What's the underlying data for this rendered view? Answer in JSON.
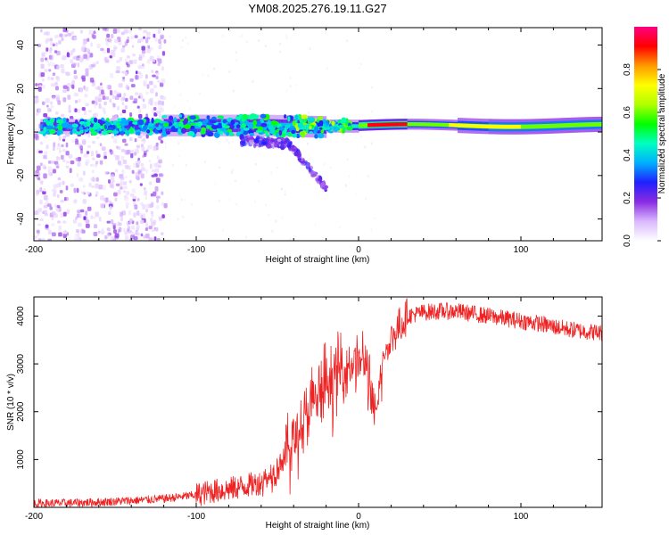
{
  "title": "YM08.2025.276.19.11.G27",
  "chart_data": [
    {
      "type": "heatmap",
      "xlabel": "Height of straight line (km)",
      "ylabel": "Frequency (Hz)",
      "xlim": [
        -200,
        150
      ],
      "ylim": [
        -50,
        48
      ],
      "xticks": [
        -200,
        -100,
        0,
        100
      ],
      "yticks": [
        -40,
        -20,
        0,
        20,
        40
      ],
      "colorbar": {
        "label": "Normalized spectral amplitude",
        "range": [
          0,
          1
        ],
        "ticks": [
          0.0,
          0.2,
          0.4,
          0.6,
          0.8
        ],
        "colors": [
          "#ffffff",
          "#d9b8ff",
          "#8a2be2",
          "#2020ff",
          "#00b0ff",
          "#00ffc0",
          "#00ff00",
          "#b0ff00",
          "#ffff00",
          "#ff9900",
          "#ff0000",
          "#ff0080"
        ]
      },
      "regions": [
        {
          "desc": "scattered noise",
          "x": [
            -200,
            -120
          ],
          "y": [
            -50,
            48
          ]
        },
        {
          "desc": "main band",
          "x": [
            -195,
            150
          ],
          "y_center": [
            2,
            4
          ]
        },
        {
          "desc": "descending branch",
          "x": [
            -45,
            -20
          ],
          "y": [
            0,
            -25
          ]
        }
      ]
    },
    {
      "type": "line",
      "xlabel": "Height of straight line (km)",
      "ylabel": "SNR (10 * v/v)",
      "xlim": [
        -200,
        150
      ],
      "ylim": [
        0,
        4400
      ],
      "xticks": [
        -200,
        -100,
        0,
        100
      ],
      "yticks": [
        1000,
        2000,
        3000,
        4000
      ],
      "color": "#ee2222",
      "series": [
        {
          "name": "SNR",
          "x": [
            -200,
            -180,
            -160,
            -140,
            -120,
            -100,
            -90,
            -80,
            -70,
            -60,
            -55,
            -50,
            -45,
            -40,
            -35,
            -30,
            -25,
            -20,
            -15,
            -10,
            -5,
            0,
            5,
            10,
            15,
            20,
            25,
            30,
            40,
            50,
            60,
            70,
            80,
            90,
            100,
            110,
            120,
            130,
            140,
            150
          ],
          "values": [
            80,
            90,
            110,
            140,
            180,
            260,
            340,
            380,
            450,
            520,
            650,
            850,
            1100,
            1400,
            1700,
            2000,
            2300,
            2500,
            2700,
            2900,
            3000,
            3100,
            3000,
            1700,
            3100,
            3500,
            3800,
            4000,
            4080,
            4100,
            4100,
            4050,
            4000,
            3950,
            3900,
            3850,
            3780,
            3720,
            3680,
            3650
          ]
        }
      ]
    }
  ]
}
